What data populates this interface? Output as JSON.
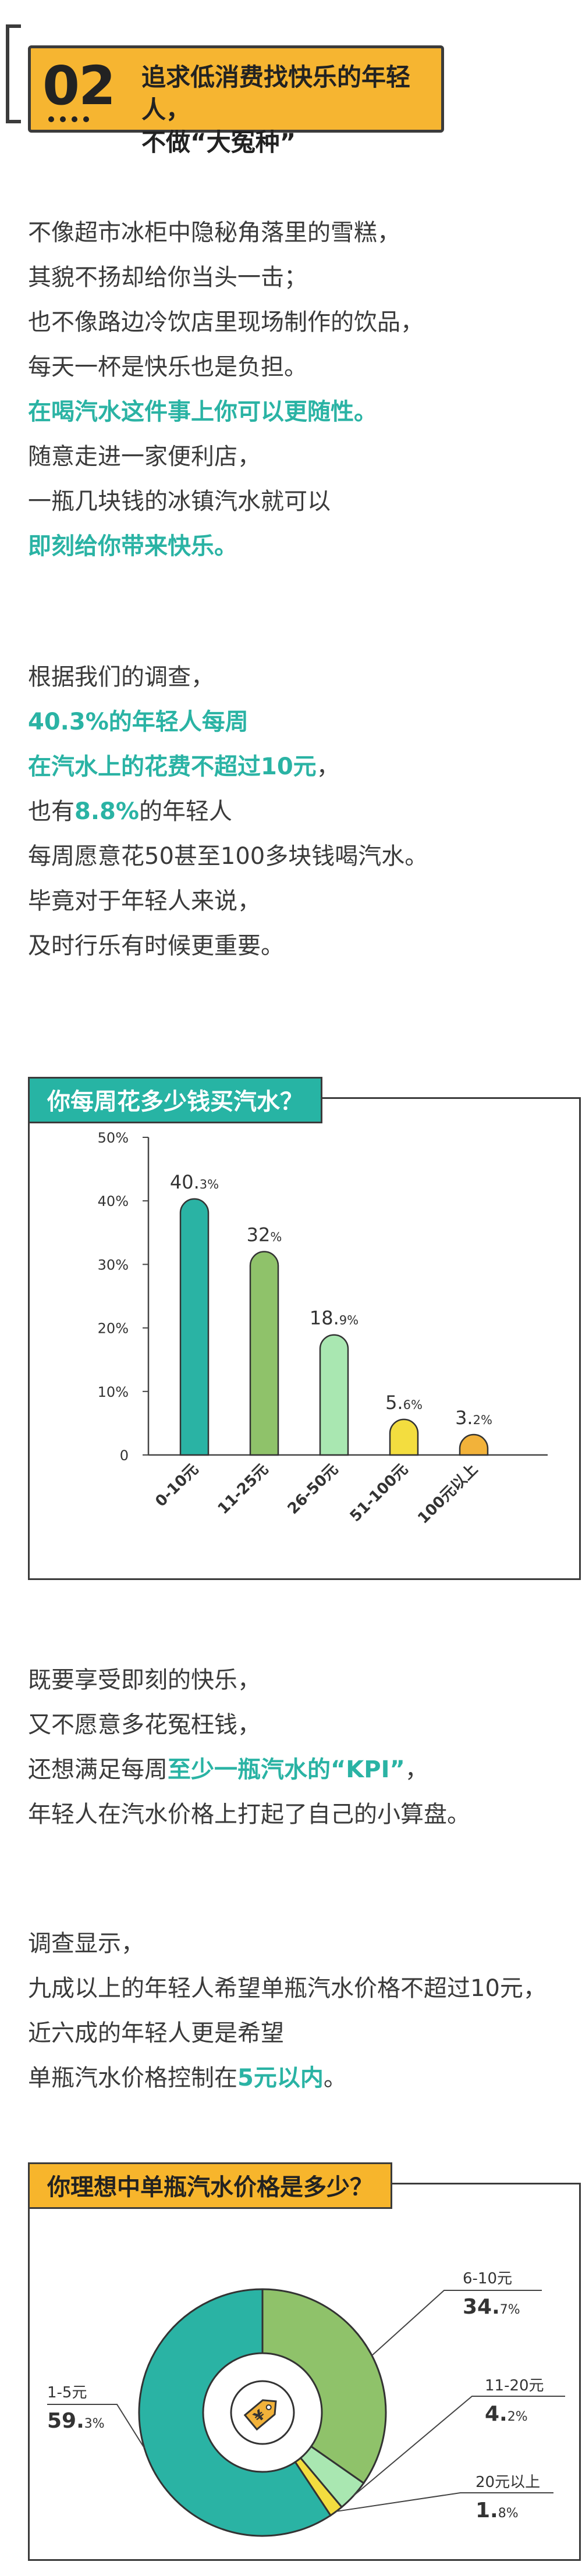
{
  "header": {
    "number": "02",
    "title_line1": "追求低消费找快乐的年轻人，",
    "title_line2": "不做“大冤种”"
  },
  "paragraph1": [
    {
      "text": "不像超市冰柜中隐秘角落里的雪糕，",
      "highlight": false
    },
    {
      "text": "其貌不扬却给你当头一击；",
      "highlight": false
    },
    {
      "text": "也不像路边冷饮店里现场制作的饮品，",
      "highlight": false
    },
    {
      "text": "每天一杯是快乐也是负担。",
      "highlight": false
    },
    {
      "text": "在喝汽水这件事上你可以更随性。",
      "highlight": true
    },
    {
      "text": "随意走进一家便利店，",
      "highlight": false
    },
    {
      "text": "一瓶几块钱的冰镇汽水就可以",
      "highlight": false
    },
    {
      "text": "即刻给你带来快乐。",
      "highlight": true
    }
  ],
  "paragraph2": {
    "l1": "根据我们的调查，",
    "l2": "40.3%的年轻人每周",
    "l3": "在汽水上的花费不超过10元",
    "l3_tail": "，",
    "l4_a": "也有",
    "l4_b": "8.8%",
    "l4_c": "的年轻人",
    "l5": "每周愿意花50甚至100多块钱喝汽水。",
    "l6": "毕竟对于年轻人来说，",
    "l7": "及时行乐有时候更重要。"
  },
  "chart1_title": "你每周花多少钱买汽水？",
  "chart_data": [
    {
      "type": "bar",
      "title": "你每周花多少钱买汽水？",
      "categories": [
        "0-10元",
        "11-25元",
        "26-50元",
        "51-100元",
        "100元以上"
      ],
      "values": [
        40.3,
        32,
        18.9,
        5.6,
        3.2
      ],
      "value_labels": [
        [
          "40.",
          "3%"
        ],
        [
          "32",
          "%"
        ],
        [
          "18.",
          "9%"
        ],
        [
          "5.",
          "6%"
        ],
        [
          "3.",
          "2%"
        ]
      ],
      "yticks": [
        "0",
        "10%",
        "20%",
        "30%",
        "40%",
        "50%"
      ],
      "ylim": [
        0,
        50
      ],
      "colors": [
        "#2ab3a4",
        "#8fc26a",
        "#a9e7b1",
        "#f3dd3f",
        "#f2b23a"
      ]
    },
    {
      "type": "pie",
      "title": "你理想中单瓶汽水价格是多少？",
      "categories": [
        "1-5元",
        "6-10元",
        "11-20元",
        "20元以上"
      ],
      "values": [
        59.3,
        34.7,
        4.2,
        1.8
      ],
      "value_labels": [
        [
          "59.",
          "3%"
        ],
        [
          "34.",
          "7%"
        ],
        [
          "4.",
          "2%"
        ],
        [
          "1.",
          "8%"
        ]
      ],
      "colors": [
        "#2ab3a4",
        "#8fc26a",
        "#a9e7b1",
        "#f3dd3f"
      ]
    }
  ],
  "paragraph3": {
    "l1": "既要享受即刻的快乐，",
    "l2": "又不愿意多花冤枉钱，",
    "l3_a": "还想满足每周",
    "l3_b": "至少一瓶汽水的“KPI”",
    "l3_c": "，",
    "l4": "年轻人在汽水价格上打起了自己的小算盘。"
  },
  "paragraph4": {
    "l1": "调查显示，",
    "l2": "九成以上的年轻人希望单瓶汽水价格不超过10元，",
    "l3": "近六成的年轻人更是希望",
    "l4_a": "单瓶汽水价格控制在",
    "l4_b": "5元以内",
    "l4_c": "。"
  },
  "chart2_title": "你理想中单瓶汽水价格是多少？"
}
